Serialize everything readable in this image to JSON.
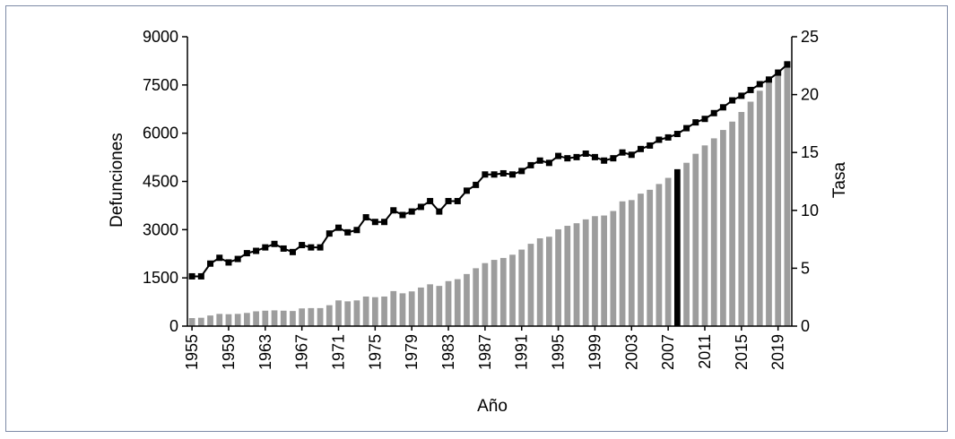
{
  "chart_data": {
    "type": "bar",
    "title": "",
    "xlabel": "Año",
    "ylabel": "Defunciones",
    "y2label": "Tasa",
    "ylim": [
      0,
      9000
    ],
    "y2lim": [
      0,
      25
    ],
    "yticks": [
      "0",
      "1500",
      "3000",
      "4500",
      "6000",
      "7500",
      "9000"
    ],
    "y2ticks": [
      "0",
      "5",
      "10",
      "15",
      "20",
      "25"
    ],
    "xticks": [
      "1955",
      "1959",
      "1963",
      "1967",
      "1971",
      "1975",
      "1979",
      "1983",
      "1987",
      "1991",
      "1995",
      "1999",
      "2003",
      "2007",
      "2011",
      "2015",
      "2019"
    ],
    "highlight_year": 2008,
    "bar_color": "#9d9d9d",
    "highlight_color": "#000000",
    "line_color": "#000000",
    "x": [
      1955,
      1956,
      1957,
      1958,
      1959,
      1960,
      1961,
      1962,
      1963,
      1964,
      1965,
      1966,
      1967,
      1968,
      1969,
      1970,
      1971,
      1972,
      1973,
      1974,
      1975,
      1976,
      1977,
      1978,
      1979,
      1980,
      1981,
      1982,
      1983,
      1984,
      1985,
      1986,
      1987,
      1988,
      1989,
      1990,
      1991,
      1992,
      1993,
      1994,
      1995,
      1996,
      1997,
      1998,
      1999,
      2000,
      2001,
      2002,
      2003,
      2004,
      2005,
      2006,
      2007,
      2008,
      2009,
      2010,
      2011,
      2012,
      2013,
      2014,
      2015,
      2016,
      2017,
      2018,
      2019,
      2020
    ],
    "series": [
      {
        "type": "bar",
        "axis": "left",
        "values": [
          250,
          260,
          330,
          380,
          370,
          380,
          410,
          460,
          480,
          490,
          480,
          470,
          550,
          560,
          560,
          650,
          800,
          770,
          800,
          920,
          900,
          920,
          1090,
          1020,
          1080,
          1200,
          1300,
          1250,
          1400,
          1460,
          1620,
          1800,
          1960,
          2060,
          2120,
          2220,
          2380,
          2560,
          2730,
          2780,
          3010,
          3120,
          3200,
          3320,
          3420,
          3440,
          3580,
          3880,
          3920,
          4120,
          4240,
          4420,
          4610,
          4880,
          5080,
          5360,
          5620,
          5840,
          6100,
          6360,
          6660,
          6980,
          7320,
          7580,
          7800,
          8250
        ]
      },
      {
        "type": "line",
        "axis": "right",
        "values": [
          4.3,
          4.3,
          5.4,
          5.9,
          5.5,
          5.8,
          6.3,
          6.5,
          6.8,
          7.1,
          6.7,
          6.4,
          7.0,
          6.8,
          6.8,
          8.0,
          8.5,
          8.1,
          8.3,
          9.4,
          9.0,
          9.0,
          10.0,
          9.6,
          9.9,
          10.3,
          10.8,
          9.9,
          10.8,
          10.8,
          11.7,
          12.2,
          13.1,
          13.1,
          13.2,
          13.1,
          13.4,
          13.9,
          14.3,
          14.1,
          14.7,
          14.5,
          14.6,
          14.9,
          14.6,
          14.3,
          14.5,
          15.0,
          14.8,
          15.3,
          15.6,
          16.1,
          16.3,
          16.6,
          17.1,
          17.6,
          17.9,
          18.4,
          18.9,
          19.5,
          19.9,
          20.4,
          20.9,
          21.3,
          21.9,
          22.6
        ]
      }
    ]
  }
}
